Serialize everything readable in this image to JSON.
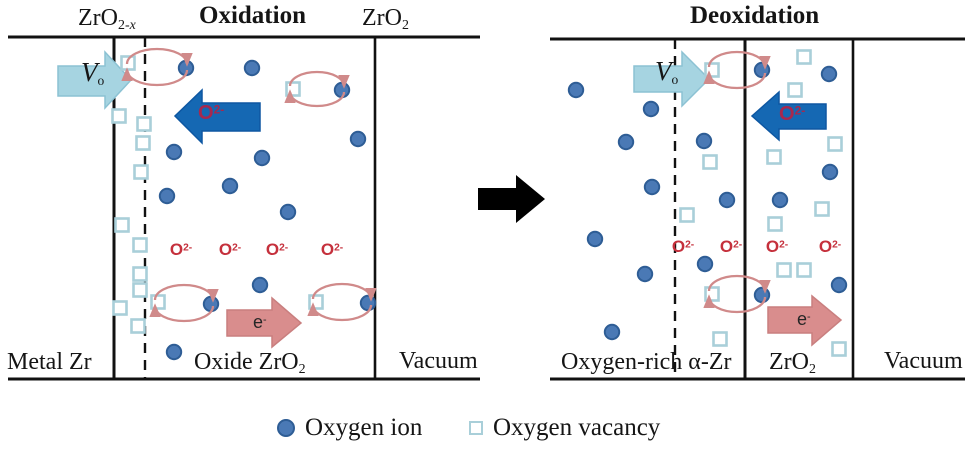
{
  "panels": {
    "left": {
      "title": "Oxidation",
      "surface_labels": {
        "zro2x": {
          "base": "ZrO",
          "sub": "2-",
          "sub_var": "x"
        },
        "zro2": {
          "base": "ZrO",
          "sub": "2"
        }
      },
      "regions": {
        "metal": "Metal Zr",
        "oxide": {
          "base": "Oxide ZrO",
          "sub": "2"
        },
        "vacuum": "Vacuum"
      }
    },
    "right": {
      "title": "Deoxidation",
      "regions": {
        "alpha_zr": "Oxygen-rich α-Zr",
        "oxide": {
          "base": "ZrO",
          "sub": "2"
        },
        "vacuum": "Vacuum"
      }
    }
  },
  "arrows": {
    "vacancy": {
      "base": "V",
      "sub": "o"
    },
    "oxygen": {
      "base": "O",
      "sup": "2-"
    },
    "electron": {
      "base": "e",
      "sup": "-"
    }
  },
  "ion_charge_label": {
    "base": "O",
    "sup": "2-"
  },
  "legend": {
    "ion_label": "Oxygen ion",
    "vacancy_label": "Oxygen vacancy"
  },
  "colors": {
    "ion_fill": "#4a79b5",
    "ion_stroke": "#2e5d95",
    "vacancy_fill": "#ffffff",
    "vacancy_stroke": "#a9cfd9",
    "vo_arrow": "#a6d4e1",
    "vo_arrow_stroke": "#8cc2d3",
    "o2_arrow": "#1568b3",
    "o2_arrow_stroke": "#0e57a2",
    "e_arrow": "#d98d8d",
    "e_arrow_stroke": "#c97f7f",
    "exchange_arrow": "#d08a8a",
    "transform_arrow": "#000000",
    "red_label": "#c5303c",
    "arrow_o2_label": "#a8284e",
    "line": "#111111"
  },
  "diagram_data": {
    "left_ions": [
      [
        186,
        68
      ],
      [
        252,
        68
      ],
      [
        342,
        90
      ],
      [
        358,
        139
      ],
      [
        174,
        152
      ],
      [
        262,
        158
      ],
      [
        230,
        186
      ],
      [
        167,
        196
      ],
      [
        288,
        212
      ],
      [
        260,
        285
      ],
      [
        211,
        304
      ],
      [
        368,
        303
      ],
      [
        174,
        352
      ]
    ],
    "left_vacancies": [
      [
        128,
        63
      ],
      [
        293,
        89
      ],
      [
        119,
        116
      ],
      [
        144,
        124
      ],
      [
        143,
        143
      ],
      [
        141,
        172
      ],
      [
        122,
        225
      ],
      [
        140,
        245
      ],
      [
        140,
        274
      ],
      [
        140,
        290
      ],
      [
        120,
        308
      ],
      [
        158,
        302
      ],
      [
        316,
        302
      ],
      [
        138,
        326
      ]
    ],
    "right_ions": [
      [
        576,
        90
      ],
      [
        651,
        109
      ],
      [
        626,
        142
      ],
      [
        704,
        141
      ],
      [
        652,
        187
      ],
      [
        727,
        200
      ],
      [
        780,
        200
      ],
      [
        595,
        239
      ],
      [
        645,
        274
      ],
      [
        705,
        264
      ],
      [
        612,
        332
      ],
      [
        762,
        70
      ],
      [
        829,
        74
      ],
      [
        830,
        172
      ],
      [
        839,
        285
      ],
      [
        762,
        295
      ]
    ],
    "right_vacancies": [
      [
        712,
        70
      ],
      [
        710,
        162
      ],
      [
        687,
        215
      ],
      [
        712,
        294
      ],
      [
        720,
        339
      ],
      [
        804,
        57
      ],
      [
        795,
        90
      ],
      [
        835,
        144
      ],
      [
        774,
        157
      ],
      [
        822,
        209
      ],
      [
        775,
        224
      ],
      [
        784,
        270
      ],
      [
        804,
        270
      ],
      [
        839,
        349
      ]
    ],
    "left_ion_labels": [
      [
        181,
        250
      ],
      [
        230,
        250
      ],
      [
        277,
        250
      ],
      [
        332,
        250
      ]
    ],
    "right_ion_labels": [
      [
        683,
        247
      ],
      [
        731,
        247
      ],
      [
        777,
        247
      ],
      [
        830,
        247
      ]
    ],
    "exchange_pairs": [
      [
        157,
        67,
        30,
        15
      ],
      [
        317,
        89,
        27,
        14
      ],
      [
        184,
        303,
        29,
        15
      ],
      [
        342,
        302,
        29,
        15
      ],
      [
        737,
        70,
        28,
        15
      ],
      [
        737,
        294,
        28,
        15
      ]
    ]
  }
}
